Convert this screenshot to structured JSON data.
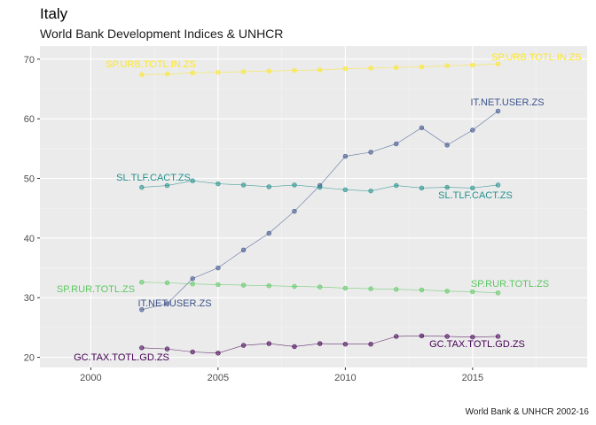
{
  "title": "Italy",
  "subtitle": "World Bank Development Indices & UNHCR",
  "caption": "World Bank & UNHCR 2002-16",
  "chart_data": {
    "type": "line",
    "xlim": [
      1998,
      2019.5
    ],
    "ylim": [
      18.3,
      72.2
    ],
    "x_ticks": [
      2000,
      2005,
      2010,
      2015
    ],
    "y_ticks": [
      20,
      30,
      40,
      50,
      60,
      70
    ],
    "grid": true,
    "legend": "none",
    "x": [
      2002,
      2003,
      2004,
      2005,
      2006,
      2007,
      2008,
      2009,
      2010,
      2011,
      2012,
      2013,
      2014,
      2015,
      2016
    ],
    "series": [
      {
        "name": "SP.URB.TOTL.IN.ZS",
        "color": "#FDE725",
        "values": [
          67.4,
          67.5,
          67.7,
          67.8,
          67.9,
          68.0,
          68.1,
          68.2,
          68.4,
          68.5,
          68.6,
          68.7,
          68.9,
          69.0,
          69.2
        ]
      },
      {
        "name": "IT.NET.USER.ZS",
        "color": "#3B528B",
        "values": [
          28.0,
          29.0,
          33.2,
          35.0,
          38.0,
          40.8,
          44.5,
          48.8,
          53.7,
          54.4,
          55.8,
          58.5,
          55.6,
          58.1,
          61.3
        ]
      },
      {
        "name": "SL.TLF.CACT.ZS",
        "color": "#21908C",
        "values": [
          48.5,
          48.8,
          49.6,
          49.1,
          48.9,
          48.6,
          48.9,
          48.5,
          48.1,
          47.9,
          48.8,
          48.4,
          48.5,
          48.4,
          48.9
        ]
      },
      {
        "name": "SP.RUR.TOTL.ZS",
        "color": "#5DC863",
        "values": [
          32.6,
          32.5,
          32.3,
          32.2,
          32.1,
          32.0,
          31.9,
          31.8,
          31.6,
          31.5,
          31.4,
          31.3,
          31.1,
          31.0,
          30.8
        ]
      },
      {
        "name": "GC.TAX.TOTL.GD.ZS",
        "color": "#440154",
        "values": [
          21.6,
          21.4,
          20.9,
          20.7,
          22.0,
          22.3,
          21.8,
          22.3,
          22.2,
          22.2,
          23.5,
          23.6,
          23.5,
          23.4,
          23.5
        ]
      }
    ],
    "label_texts": {
      "SP.URB.TOTL.IN.ZS": [
        "SP.URB.TOTL.IN.ZS",
        "SP.URB.TOTL.IN.ZS"
      ],
      "IT.NET.USER.ZS": [
        "IT.NET.USER.ZS",
        "IT.NET.USER.ZS"
      ],
      "SL.TLF.CACT.ZS": [
        "SL.TLF.CACT.ZS",
        "SL.TLF.CACT.ZS"
      ],
      "SP.RUR.TOTL.ZS": [
        "SP.RUR.TOTL.ZS",
        "SP.RUR.TOTL.ZS"
      ],
      "GC.TAX.TOTL.GD.ZS": [
        "GC.TAX.TOTL.GD.ZS",
        "GC.TAX.TOTL.GD.ZS"
      ]
    }
  }
}
